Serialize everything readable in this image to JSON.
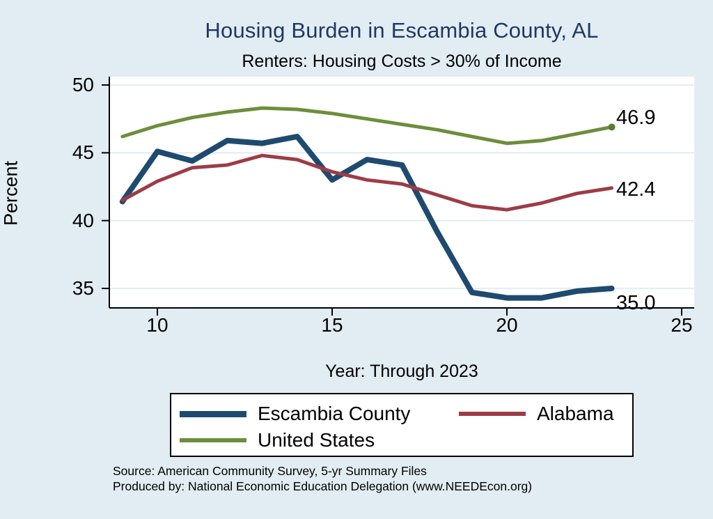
{
  "header": {
    "title": "Housing Burden in Escambia County, AL",
    "subtitle": "Renters: Housing Costs > 30% of Income"
  },
  "chart_data": {
    "type": "line",
    "title": "Housing Burden in Escambia County, AL",
    "subtitle": "Renters: Housing Costs > 30% of Income",
    "xlabel": "Year: Through 2023",
    "ylabel": "Percent",
    "x_years": [
      2009,
      2010,
      2011,
      2012,
      2013,
      2014,
      2015,
      2016,
      2017,
      2018,
      2019,
      2020,
      2021,
      2022,
      2023
    ],
    "x_tick_values": [
      10,
      15,
      20,
      25
    ],
    "x_tick_labels": [
      "10",
      "15",
      "20",
      "25"
    ],
    "y_tick_values": [
      35,
      40,
      45,
      50
    ],
    "y_tick_labels": [
      "35",
      "40",
      "45",
      "50"
    ],
    "xlim": [
      8.6,
      25.4
    ],
    "ylim": [
      33.6,
      50.6
    ],
    "grid": true,
    "legend_position": "bottom",
    "series": [
      {
        "name": "Escambia County",
        "color": "#1f4a6f",
        "line_width": 8,
        "values": [
          41.4,
          45.1,
          44.4,
          45.9,
          45.7,
          46.2,
          43.0,
          44.5,
          44.1,
          39.2,
          34.7,
          34.3,
          34.3,
          34.8,
          35.0
        ],
        "end_label": "35.0"
      },
      {
        "name": "Alabama",
        "color": "#9d3c46",
        "line_width": 5,
        "values": [
          41.5,
          42.9,
          43.9,
          44.1,
          44.8,
          44.5,
          43.6,
          43.0,
          42.7,
          41.9,
          41.1,
          40.8,
          41.3,
          42.0,
          42.4
        ],
        "end_label": "42.4"
      },
      {
        "name": "United States",
        "color": "#6d8e3c",
        "line_width": 5,
        "values": [
          46.2,
          47.0,
          47.6,
          48.0,
          48.3,
          48.2,
          47.9,
          47.5,
          47.1,
          46.7,
          46.2,
          45.7,
          45.9,
          46.4,
          46.9
        ],
        "end_label": "46.9",
        "end_marker": "dot",
        "end_marker_color": "#567f2a"
      }
    ]
  },
  "footer": {
    "line1": "Source: American Community Survey, 5-yr Summary Files",
    "line2": "Produced by: National Economic Education Delegation (www.NEEDEcon.org)"
  },
  "colors": {
    "background": "#e2edf3",
    "plot_background": "#ffffff",
    "gridline": "#dce8f0",
    "axis": "#000000",
    "title": "#1f3864"
  }
}
